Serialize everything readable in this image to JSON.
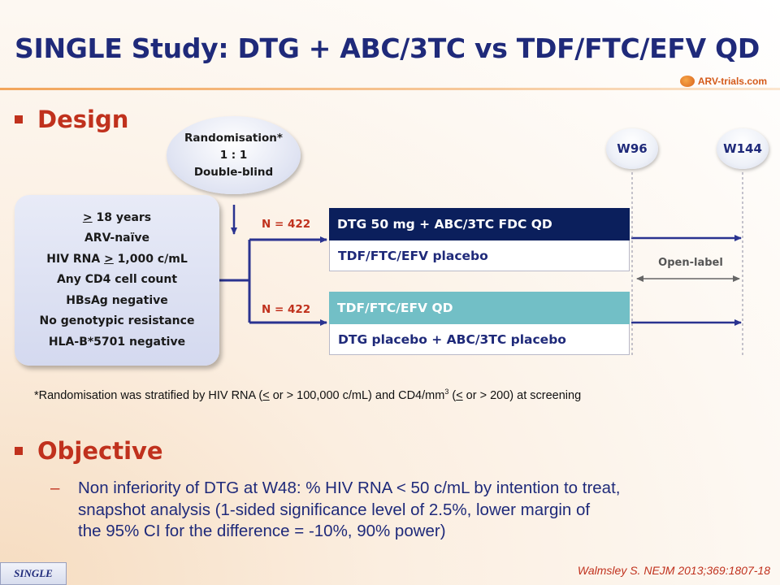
{
  "title": "SINGLE Study: DTG + ABC/3TC vs TDF/FTC/EFV QD",
  "logo": {
    "text": "ARV-trials.com"
  },
  "design": {
    "label": "Design",
    "randomisation": [
      "Randomisation*",
      "1 : 1",
      "Double-blind"
    ],
    "criteria": [
      {
        "prefix": ">",
        "text": " 18 years"
      },
      {
        "prefix": "",
        "text": "ARV-naïve"
      },
      {
        "prefix": "",
        "text": "HIV RNA ",
        "under": ">",
        "suffix": " 1,000 c/mL"
      },
      {
        "prefix": "",
        "text": "Any CD4 cell count"
      },
      {
        "prefix": "",
        "text": "HBsAg negative"
      },
      {
        "prefix": "",
        "text": "No genotypic resistance"
      },
      {
        "prefix": "",
        "text": "HLA-B*5701 negative"
      }
    ],
    "arms": [
      {
        "n_label": "N = 422",
        "top": "DTG 50 mg + ABC/3TC FDC QD",
        "bottom": "TDF/FTC/EFV placebo",
        "top_color": "#0b1f5c",
        "top_text_color": "#ffffff"
      },
      {
        "n_label": "N = 422",
        "top": "TDF/FTC/EFV QD",
        "bottom": "DTG placebo + ABC/3TC placebo",
        "top_color": "#72bfc6",
        "top_text_color": "#ffffff"
      }
    ],
    "timepoints": [
      "W96",
      "W144"
    ],
    "open_label": "Open-label",
    "footnote": {
      "a": "*Randomisation was stratified by HIV RNA (",
      "b": "<",
      "c": " or > 100,000 c/mL) and CD4/mm",
      "sup": "3",
      "d": " (",
      "e": "<",
      "f": " or > 200) at screening"
    }
  },
  "objective": {
    "label": "Objective",
    "dash": "–",
    "lines": [
      "Non inferiority of DTG at W48: % HIV RNA < 50 c/mL by intention to treat,",
      "snapshot analysis (1-sided significance level of 2.5%, lower margin of",
      "the 95% CI for the difference = -10%, 90% power)"
    ]
  },
  "study_tag": "SINGLE",
  "citation": "Walmsley S. NEJM 2013;369:1807-18",
  "colors": {
    "title": "#1f2a7a",
    "accent_red": "#c0311d",
    "arrow": "#2a3390"
  }
}
